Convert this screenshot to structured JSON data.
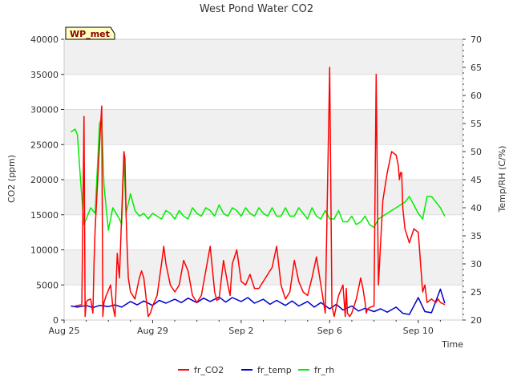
{
  "chart_data": {
    "type": "line",
    "title": "West Pond Water CO2",
    "xlabel": "Time",
    "ylabel": "CO2 (ppm)",
    "y2label": "Temp/RH (C/%)",
    "badge": "WP_met",
    "x_ticks": [
      "Aug 25",
      "Aug 29",
      "Sep 2",
      "Sep 6",
      "Sep 10"
    ],
    "x_tick_days": [
      0,
      4,
      8,
      12,
      16
    ],
    "xlim": [
      0,
      18
    ],
    "ylim": [
      0,
      40000
    ],
    "y_ticks": [
      0,
      5000,
      10000,
      15000,
      20000,
      25000,
      30000,
      35000,
      40000
    ],
    "y2lim": [
      20,
      70
    ],
    "y2_ticks": [
      20,
      25,
      30,
      35,
      40,
      45,
      50,
      55,
      60,
      65,
      70
    ],
    "grid": "horizontal bands",
    "legend_position": "bottom",
    "series": [
      {
        "name": "fr_CO2",
        "color": "#ff0000",
        "axis": "left",
        "x": [
          0.5,
          0.8,
          0.9,
          0.95,
          1.0,
          1.05,
          1.2,
          1.3,
          1.35,
          1.4,
          1.6,
          1.7,
          1.75,
          1.8,
          1.9,
          2.1,
          2.2,
          2.3,
          2.4,
          2.5,
          2.6,
          2.7,
          2.75,
          2.8,
          2.85,
          2.9,
          3.0,
          3.1,
          3.2,
          3.3,
          3.4,
          3.5,
          3.6,
          3.8,
          3.9,
          4.0,
          4.2,
          4.4,
          4.5,
          4.6,
          4.8,
          5.0,
          5.2,
          5.4,
          5.6,
          5.8,
          6.0,
          6.2,
          6.4,
          6.6,
          6.8,
          6.9,
          7.0,
          7.2,
          7.4,
          7.5,
          7.6,
          7.8,
          8.0,
          8.2,
          8.4,
          8.6,
          8.8,
          9.0,
          9.2,
          9.4,
          9.6,
          9.8,
          10.0,
          10.2,
          10.4,
          10.6,
          10.8,
          11.0,
          11.2,
          11.4,
          11.6,
          11.8,
          12.0,
          12.1,
          12.2,
          12.4,
          12.6,
          12.7,
          12.75,
          12.8,
          12.9,
          13.0,
          13.2,
          13.4,
          13.5,
          13.6,
          13.65,
          13.7,
          13.8,
          14.0,
          14.1,
          14.2,
          14.4,
          14.6,
          14.8,
          15.0,
          15.1,
          15.15,
          15.2,
          15.25,
          15.3,
          15.4,
          15.6,
          15.7,
          15.8,
          16.0,
          16.2,
          16.3,
          16.4,
          16.6,
          16.8,
          16.9,
          17.0,
          17.2
        ],
        "y": [
          2000,
          2200,
          29000,
          500,
          2500,
          2800,
          3000,
          1000,
          8000,
          13000,
          25000,
          30500,
          500,
          2500,
          3500,
          5000,
          2000,
          500,
          9500,
          6000,
          15000,
          24000,
          23000,
          15000,
          10000,
          6000,
          4000,
          3500,
          3000,
          4500,
          6000,
          7000,
          6000,
          500,
          1000,
          2000,
          3500,
          8000,
          10500,
          8000,
          5000,
          4000,
          5000,
          8500,
          7000,
          3500,
          2500,
          3500,
          7000,
          10500,
          4000,
          2800,
          3000,
          8500,
          5000,
          3500,
          8000,
          10000,
          5500,
          5000,
          6500,
          4500,
          4500,
          5500,
          6500,
          7500,
          10500,
          5000,
          3000,
          4000,
          8500,
          5500,
          4000,
          3500,
          6000,
          9000,
          5000,
          1000,
          36000,
          2000,
          500,
          3500,
          5000,
          500,
          4500,
          1000,
          500,
          1000,
          3000,
          6000,
          4500,
          2500,
          1000,
          1500,
          1800,
          2000,
          35000,
          5000,
          17000,
          21000,
          24000,
          23500,
          22000,
          20000,
          21000,
          21000,
          16000,
          13000,
          11000,
          12000,
          13000,
          12500,
          4000,
          5000,
          2500,
          3000,
          2500,
          3000,
          2500,
          2200
        ],
        "yaxis_note": ""
      },
      {
        "name": "fr_temp",
        "color": "#0000cc",
        "axis": "right",
        "x": [
          0.3,
          0.6,
          1.0,
          1.3,
          1.6,
          2.0,
          2.3,
          2.6,
          3.0,
          3.3,
          3.6,
          4.0,
          4.3,
          4.6,
          5.0,
          5.3,
          5.6,
          6.0,
          6.3,
          6.6,
          7.0,
          7.3,
          7.6,
          8.0,
          8.3,
          8.6,
          9.0,
          9.3,
          9.6,
          10.0,
          10.3,
          10.6,
          11.0,
          11.3,
          11.6,
          12.0,
          12.3,
          12.6,
          13.0,
          13.3,
          13.6,
          14.0,
          14.3,
          14.6,
          15.0,
          15.3,
          15.6,
          16.0,
          16.3,
          16.6,
          17.0,
          17.2
        ],
        "y": [
          22.5,
          22.3,
          22.6,
          22.2,
          22.6,
          22.4,
          22.7,
          22.3,
          23.3,
          22.7,
          23.4,
          22.6,
          23.5,
          23.0,
          23.7,
          23.1,
          23.9,
          23.1,
          23.9,
          23.3,
          24.1,
          23.2,
          24.0,
          23.3,
          24.0,
          23.0,
          23.7,
          22.8,
          23.5,
          22.6,
          23.4,
          22.5,
          23.3,
          22.3,
          23.1,
          22.0,
          22.8,
          21.8,
          22.5,
          21.6,
          22.1,
          21.5,
          22.0,
          21.4,
          22.3,
          21.2,
          21.0,
          24.0,
          21.5,
          21.3,
          25.5,
          23.0
        ]
      },
      {
        "name": "fr_rh",
        "color": "#00ee00",
        "axis": "right",
        "x": [
          0.3,
          0.5,
          0.6,
          0.75,
          0.9,
          1.0,
          1.2,
          1.4,
          1.6,
          1.7,
          1.8,
          2.0,
          2.2,
          2.5,
          2.6,
          2.7,
          2.8,
          3.0,
          3.2,
          3.4,
          3.6,
          3.8,
          4.0,
          4.2,
          4.4,
          4.6,
          4.8,
          5.0,
          5.2,
          5.4,
          5.6,
          5.8,
          6.0,
          6.2,
          6.4,
          6.6,
          6.8,
          7.0,
          7.2,
          7.4,
          7.6,
          7.8,
          8.0,
          8.2,
          8.4,
          8.6,
          8.8,
          9.0,
          9.2,
          9.4,
          9.6,
          9.8,
          10.0,
          10.2,
          10.4,
          10.6,
          10.8,
          11.0,
          11.2,
          11.4,
          11.6,
          11.8,
          12.0,
          12.2,
          12.4,
          12.6,
          12.8,
          13.0,
          13.2,
          13.4,
          13.6,
          13.8,
          14.0,
          14.2,
          14.4,
          14.6,
          14.8,
          15.0,
          15.2,
          15.4,
          15.6,
          15.8,
          16.0,
          16.2,
          16.4,
          16.6,
          16.8,
          17.0,
          17.2
        ],
        "y": [
          53.5,
          54,
          53,
          44.5,
          37,
          38,
          40,
          39,
          55,
          56,
          44,
          36,
          40,
          38,
          37,
          49,
          39,
          42.5,
          39.5,
          38.5,
          39,
          38,
          39,
          38.5,
          38,
          39.5,
          39,
          38,
          39.5,
          38.5,
          38,
          40,
          39,
          38.5,
          40,
          39.5,
          38.5,
          40.5,
          39,
          38.5,
          40,
          39.5,
          38.5,
          40,
          39,
          38.5,
          40,
          39,
          38.5,
          40,
          38.5,
          38.5,
          40,
          38.5,
          38.5,
          40,
          39,
          38,
          40,
          38.5,
          38,
          39.5,
          38,
          38,
          39.5,
          37.5,
          37.5,
          38.5,
          37,
          37.5,
          38.5,
          37,
          36.5,
          38,
          38.5,
          39,
          39.5,
          40,
          40.5,
          41,
          42,
          40.5,
          39,
          38,
          42,
          42,
          41,
          40,
          38.5
        ]
      }
    ]
  }
}
